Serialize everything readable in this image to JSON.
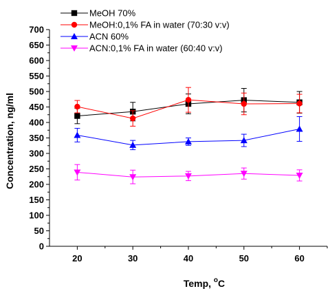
{
  "chart_data": {
    "type": "line",
    "title": "",
    "xlabel": "Temp, ",
    "xlabel_sup": "o",
    "xlabel_unit": "C",
    "ylabel": "Concentration, ng/ml",
    "x": [
      20,
      30,
      40,
      50,
      60
    ],
    "xlim": [
      15,
      65
    ],
    "ylim": [
      0,
      700
    ],
    "xticks": [
      20,
      30,
      40,
      50,
      60
    ],
    "yticks": [
      0,
      50,
      100,
      150,
      200,
      250,
      300,
      350,
      400,
      450,
      500,
      550,
      600,
      650,
      700
    ],
    "grid": false,
    "legend_position": "top-left",
    "series": [
      {
        "name": "MeOH 70%",
        "color": "#000000",
        "marker": "square",
        "values": [
          421,
          435,
          460,
          472,
          465
        ],
        "errors": [
          25,
          30,
          32,
          38,
          35
        ]
      },
      {
        "name": "MeOH:0,1% FA in water (70:30 v:v)",
        "color": "#ff0000",
        "marker": "circle",
        "values": [
          451,
          413,
          473,
          460,
          461
        ],
        "errors": [
          20,
          25,
          40,
          35,
          30
        ]
      },
      {
        "name": "ACN 60%",
        "color": "#0000ff",
        "marker": "triangle-up",
        "values": [
          359,
          327,
          338,
          342,
          379
        ],
        "errors": [
          22,
          15,
          12,
          20,
          40
        ]
      },
      {
        "name": "ACN:0,1% FA in water (60:40 v:v)",
        "color": "#ff00ff",
        "marker": "triangle-down",
        "values": [
          239,
          224,
          227,
          235,
          229
        ],
        "errors": [
          25,
          22,
          15,
          18,
          18
        ]
      }
    ]
  }
}
